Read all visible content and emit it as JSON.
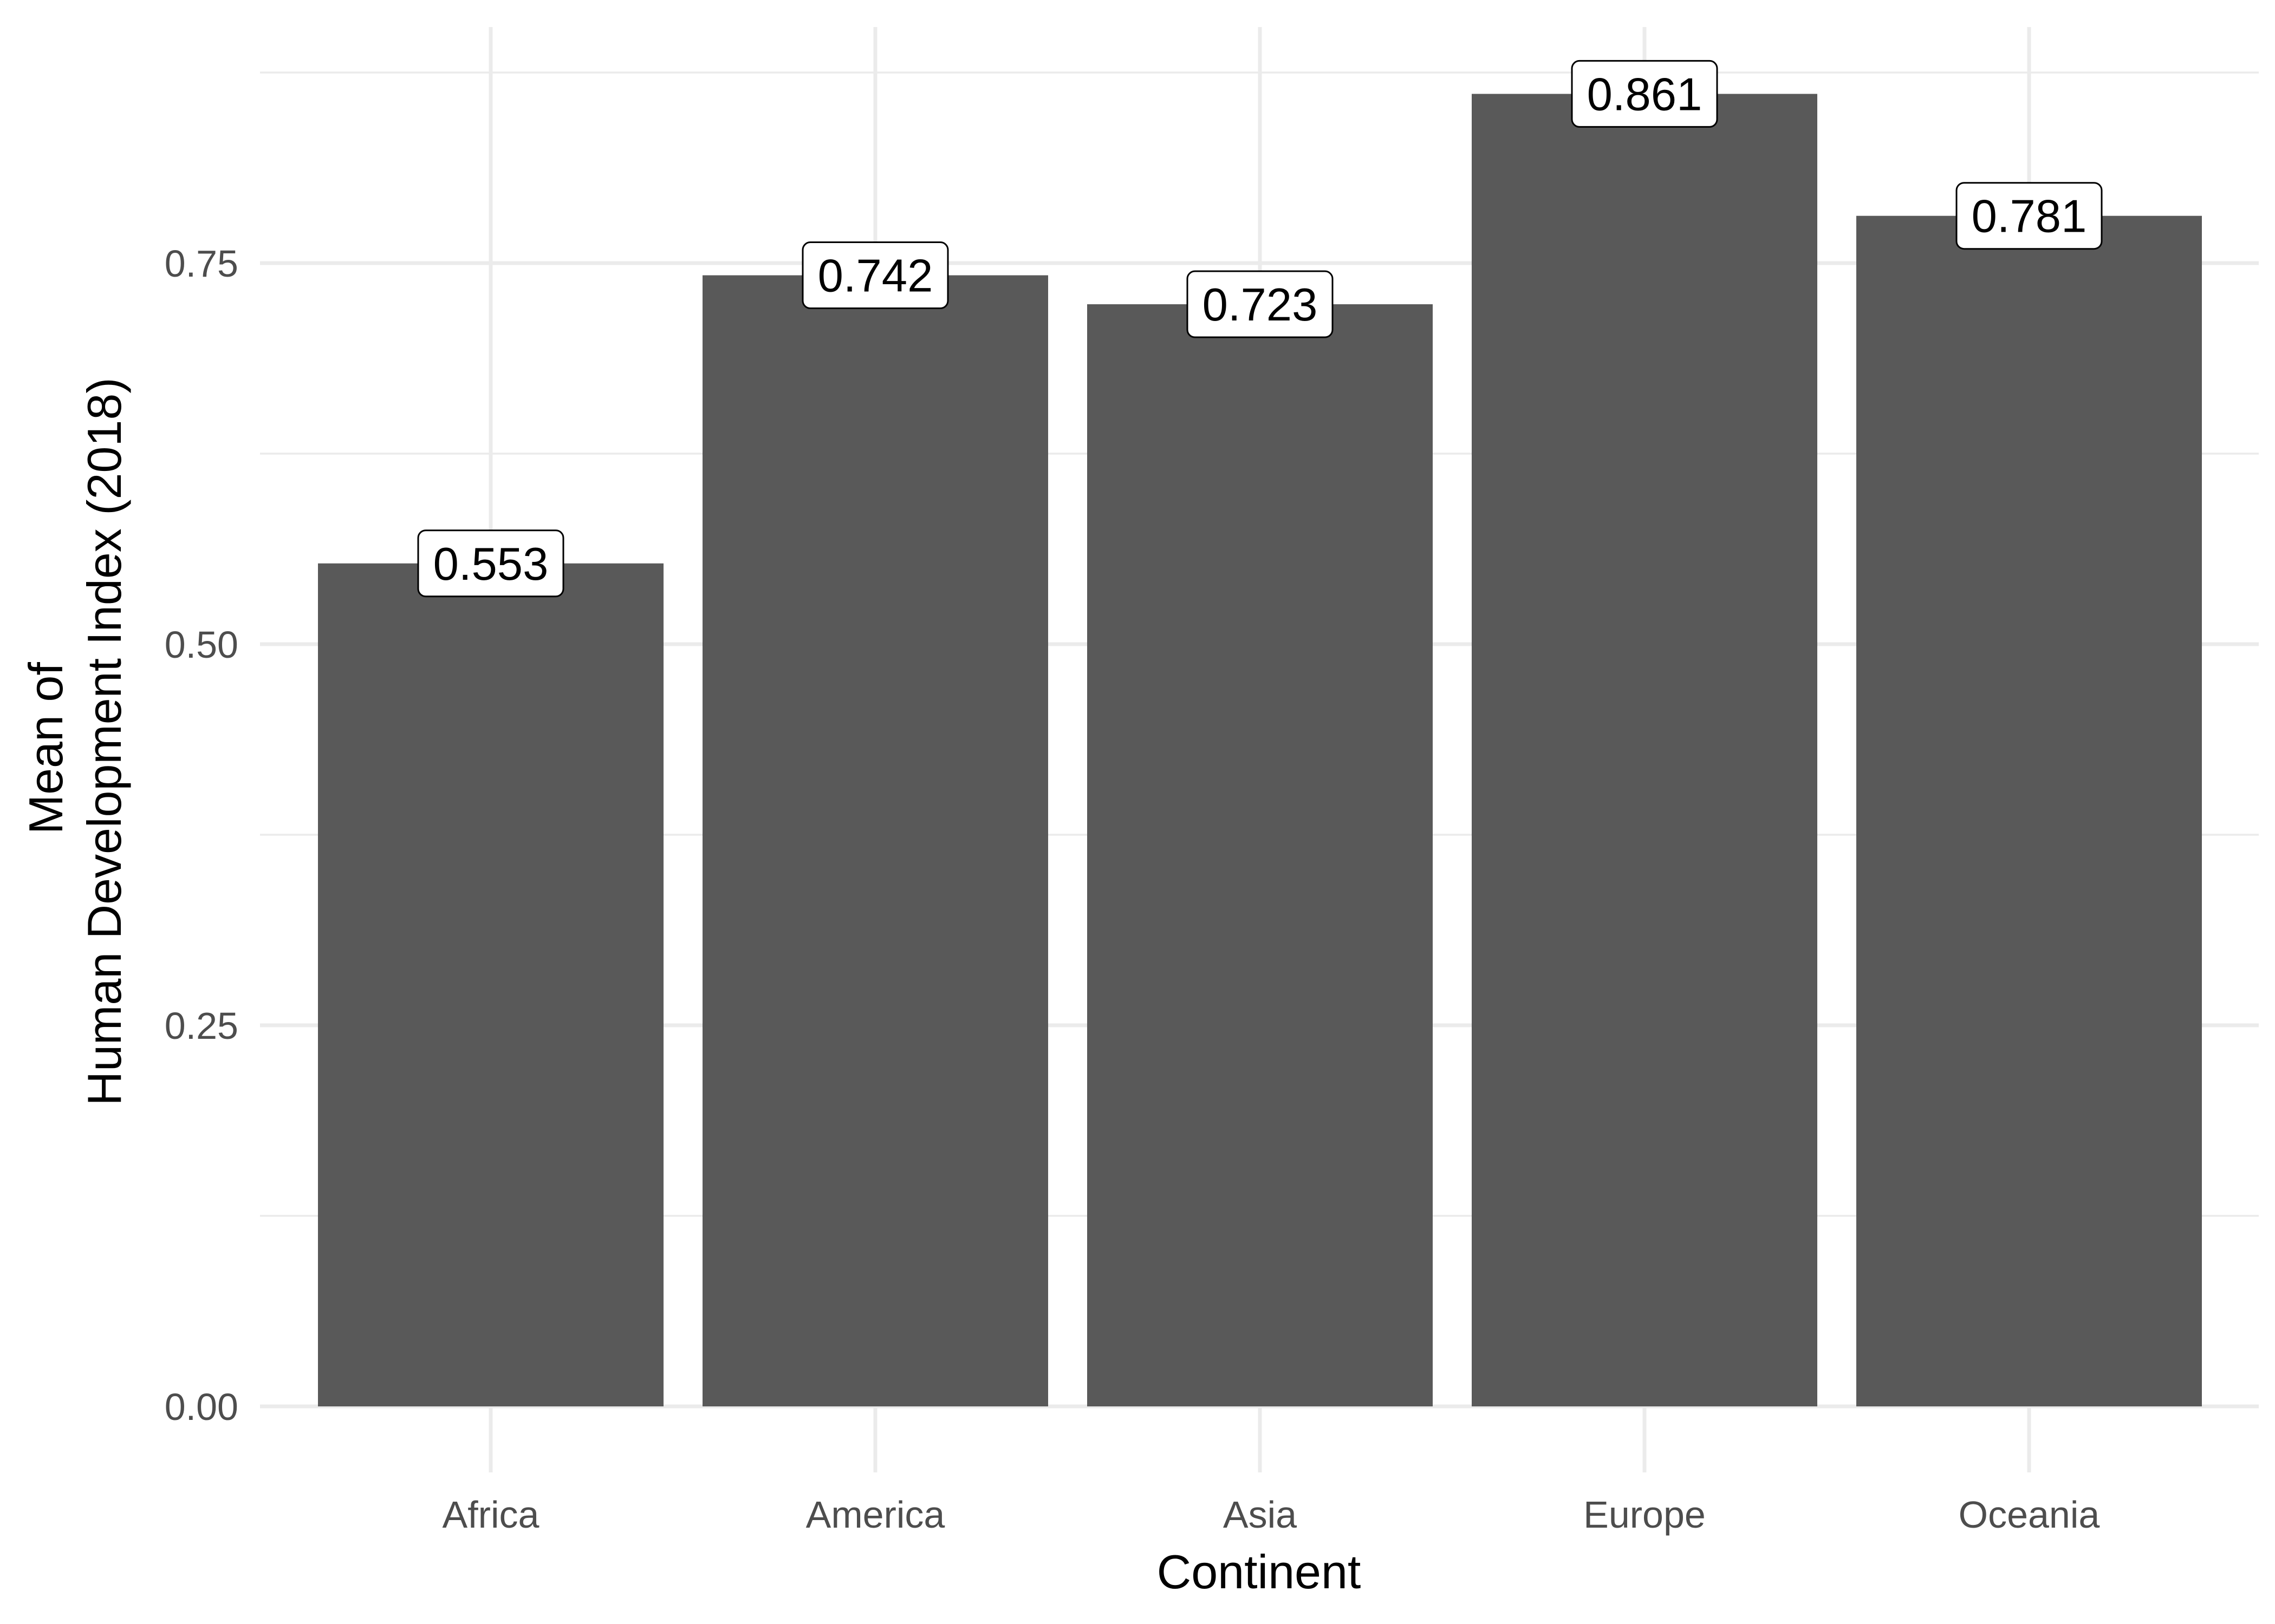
{
  "chart_data": {
    "type": "bar",
    "categories": [
      "Africa",
      "America",
      "Asia",
      "Europe",
      "Oceania"
    ],
    "values": [
      0.553,
      0.742,
      0.723,
      0.861,
      0.781
    ],
    "data_labels": [
      "0.553",
      "0.742",
      "0.723",
      "0.861",
      "0.781"
    ],
    "title": "",
    "xlabel": "Continent",
    "ylabel_lines": [
      "Mean of",
      "Human Development Index (2018)"
    ],
    "ylim": [
      0,
      0.9
    ],
    "y_ticks": [
      0,
      0.25,
      0.5,
      0.75
    ],
    "y_tick_labels": [
      "0.00",
      "0.25",
      "0.50",
      "0.75"
    ],
    "grid": true,
    "legend": "none",
    "colors": {
      "bar": "#595959",
      "grid": "#ebebeb",
      "tick_text": "#4d4d4d"
    }
  }
}
